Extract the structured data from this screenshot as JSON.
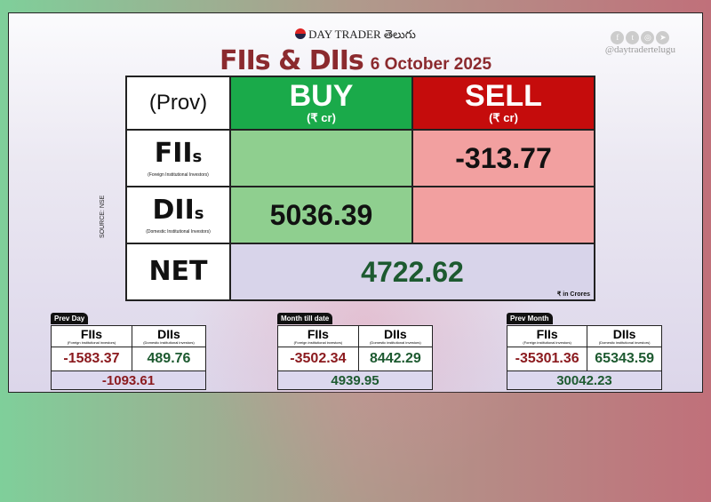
{
  "brand": {
    "name": "DAY TRADER తెలుగు",
    "handle": "@daytradertelugu",
    "social_icons": [
      "facebook-icon",
      "twitter-icon",
      "instagram-icon",
      "telegram-icon"
    ]
  },
  "title": {
    "main": "FIIs & DIIs",
    "date": "6 October 2025"
  },
  "table": {
    "corner": "(Prov)",
    "buy": {
      "label": "BUY",
      "unit": "(₹ cr)"
    },
    "sell": {
      "label": "SELL",
      "unit": "(₹ cr)"
    },
    "fii": {
      "label": "FII",
      "suffix": "s",
      "sub": "(Foreign Institutional Investors)",
      "buy": "",
      "sell": "-313.77"
    },
    "dii": {
      "label": "DII",
      "suffix": "s",
      "sub": "(Domestic Institutional Investors)",
      "buy": "5036.39",
      "sell": ""
    },
    "net": {
      "label": "NET",
      "value": "4722.62",
      "unit": "₹ in Crores"
    },
    "source": "SOURCE: NSE"
  },
  "summaries": [
    {
      "tab": "Prev Day",
      "fii_label": "FIIs",
      "fii_sub": "(Foreign institutional investors)",
      "dii_label": "DIIs",
      "dii_sub": "(Domestic institutional investors)",
      "fii": "-1583.37",
      "dii": "489.76",
      "net": "-1093.61"
    },
    {
      "tab": "Month till date",
      "fii_label": "FIIs",
      "fii_sub": "(Foreign institutional investors)",
      "dii_label": "DIIs",
      "dii_sub": "(Domestic institutional investors)",
      "fii": "-3502.34",
      "dii": "8442.29",
      "net": "4939.95"
    },
    {
      "tab": "Prev Month",
      "fii_label": "FIIs",
      "fii_sub": "(Foreign institutional investors)",
      "dii_label": "DIIs",
      "dii_sub": "(Domestic institutional investors)",
      "fii": "-35301.36",
      "dii": "65343.59",
      "net": "30042.23"
    }
  ],
  "colors": {
    "buy": "#1aaa4a",
    "sell": "#c50c0c",
    "negative": "#8b1a1e",
    "positive": "#1d5a30",
    "title": "#8b2a2e"
  }
}
